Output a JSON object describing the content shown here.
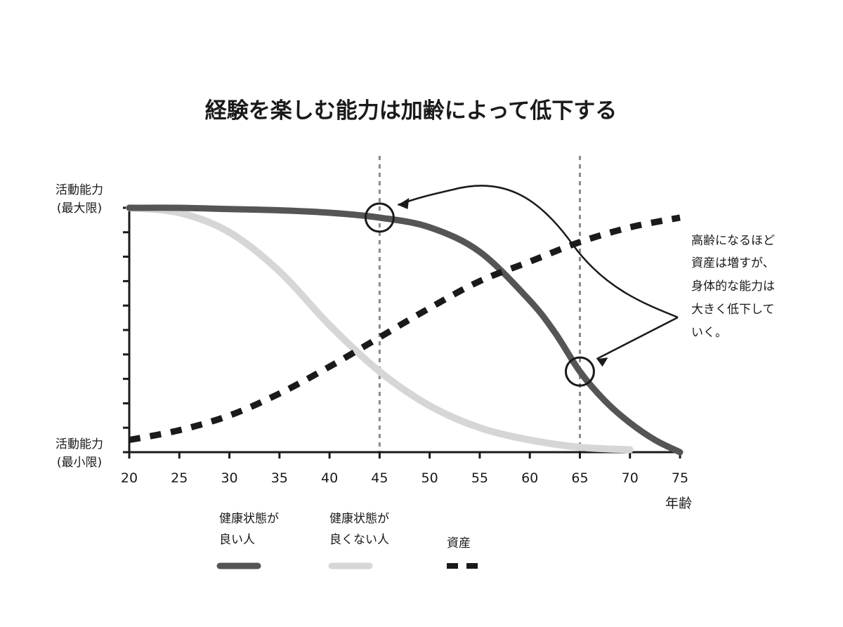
{
  "chart_data": {
    "type": "line",
    "title": "経験を楽しむ能力は加齢によって低下する",
    "xlabel": "年齢",
    "ylabel_top": [
      "活動能力",
      "(最大限)"
    ],
    "ylabel_bottom": [
      "活動能力",
      "(最小限)"
    ],
    "xlim": [
      20,
      75
    ],
    "ylim": [
      0,
      1
    ],
    "x_ticks": [
      20,
      25,
      30,
      35,
      40,
      45,
      50,
      55,
      60,
      65,
      70,
      75
    ],
    "y_tick_count": 10,
    "grid": false,
    "reference_lines_x": [
      45,
      65
    ],
    "series": [
      {
        "name": "健康状態が良い人",
        "style": "solid-dark",
        "color": "#555555",
        "x": [
          20,
          25,
          30,
          35,
          40,
          45,
          50,
          55,
          60,
          62.5,
          65,
          67.5,
          70,
          72.5,
          75
        ],
        "y": [
          1.0,
          1.0,
          0.995,
          0.99,
          0.98,
          0.96,
          0.92,
          0.82,
          0.62,
          0.49,
          0.33,
          0.21,
          0.12,
          0.05,
          0.0
        ]
      },
      {
        "name": "健康状態が良くない人",
        "style": "solid-light",
        "color": "#d6d6d6",
        "x": [
          20,
          25,
          30,
          35,
          40,
          45,
          50,
          55,
          60,
          65,
          70
        ],
        "y": [
          1.0,
          0.98,
          0.9,
          0.74,
          0.52,
          0.33,
          0.19,
          0.1,
          0.05,
          0.02,
          0.01
        ]
      },
      {
        "name": "資産",
        "style": "dashed",
        "color": "#1a1a1a",
        "x": [
          20,
          25,
          30,
          35,
          40,
          45,
          50,
          55,
          60,
          65,
          70,
          75
        ],
        "y": [
          0.05,
          0.09,
          0.15,
          0.24,
          0.35,
          0.47,
          0.59,
          0.7,
          0.78,
          0.86,
          0.92,
          0.96
        ]
      }
    ],
    "annotations": [
      {
        "text_lines": [
          "高齢になるほど",
          "資産は増すが、",
          "身体的な能力は",
          "大きく低下して",
          "いく。"
        ],
        "position": "right"
      }
    ],
    "highlight_points": [
      {
        "series": "健康状態が良い人",
        "x": 45
      },
      {
        "series": "健康状態が良い人",
        "x": 65
      }
    ],
    "legend": {
      "placement": "bottom",
      "items": [
        {
          "lines": [
            "健康状態が",
            "良い人"
          ],
          "series": "健康状態が良い人"
        },
        {
          "lines": [
            "健康状態が",
            "良くない人"
          ],
          "series": "健康状態が良くない人"
        },
        {
          "lines": [
            "資産"
          ],
          "series": "資産"
        }
      ]
    }
  }
}
